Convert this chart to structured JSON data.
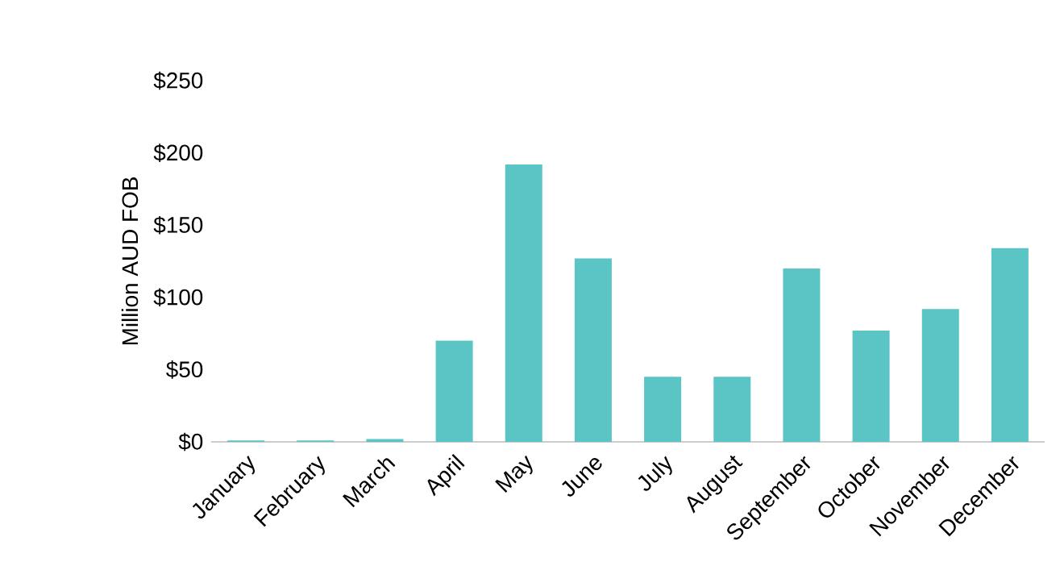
{
  "chart_data": {
    "type": "bar",
    "ylabel": "Million AUD FOB",
    "categories": [
      "January",
      "February",
      "March",
      "April",
      "May",
      "June",
      "July",
      "August",
      "September",
      "October",
      "November",
      "December"
    ],
    "values": [
      1,
      1,
      2,
      70,
      192,
      127,
      45,
      45,
      120,
      77,
      92,
      134
    ],
    "color": "#5bc5c6",
    "ylim": [
      0,
      250
    ],
    "yticks": [
      {
        "value": 0,
        "label": "$0"
      },
      {
        "value": 50,
        "label": "$50"
      },
      {
        "value": 100,
        "label": "$100"
      },
      {
        "value": 150,
        "label": "$150"
      },
      {
        "value": 200,
        "label": "$200"
      },
      {
        "value": 250,
        "label": "$250"
      }
    ],
    "grid": false
  }
}
